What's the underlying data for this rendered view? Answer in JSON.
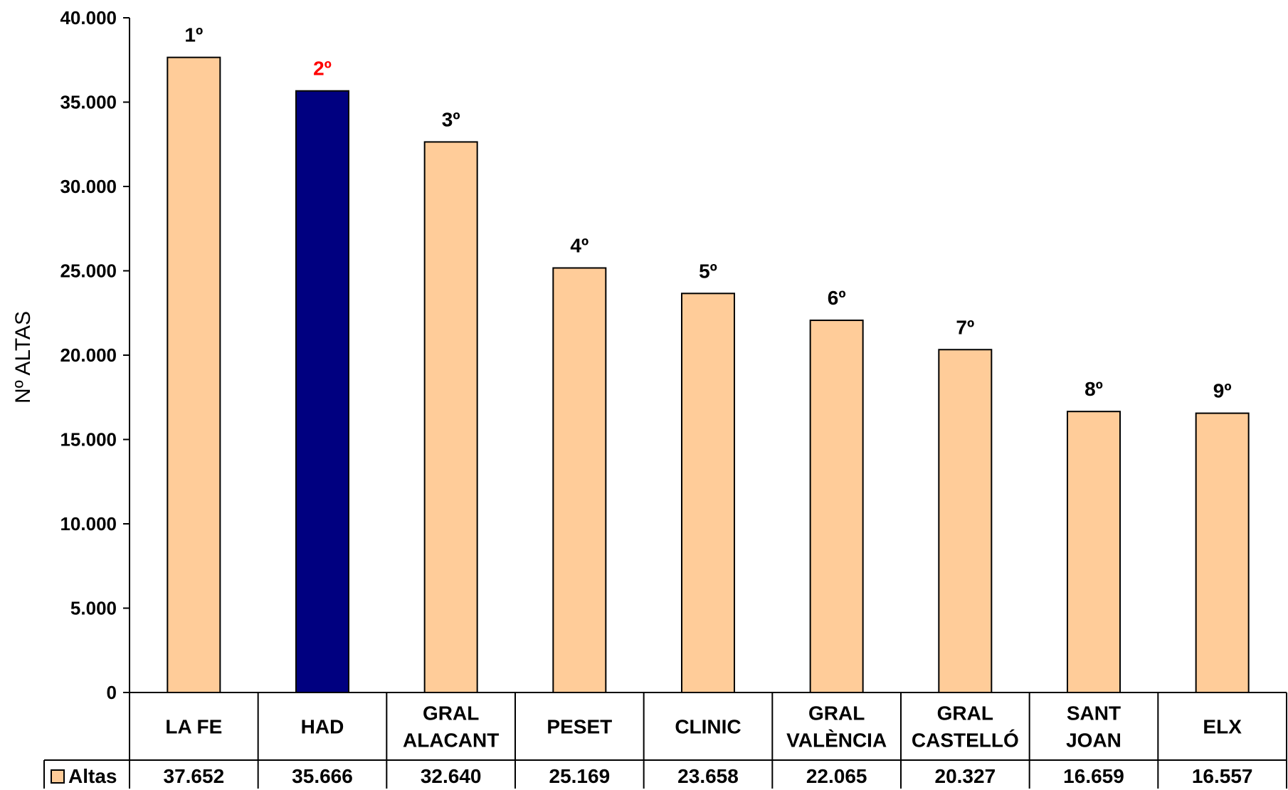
{
  "chart_data": {
    "type": "bar",
    "ylabel": "Nº ALTAS",
    "ylim": [
      0,
      40000
    ],
    "yticks": [
      0,
      5000,
      10000,
      15000,
      20000,
      25000,
      30000,
      35000,
      40000
    ],
    "ytick_labels": [
      "0",
      "5.000",
      "10.000",
      "15.000",
      "20.000",
      "25.000",
      "30.000",
      "35.000",
      "40.000"
    ],
    "categories": [
      [
        "LA FE"
      ],
      [
        "HAD"
      ],
      [
        "GRAL",
        "ALACANT"
      ],
      [
        "PESET"
      ],
      [
        "CLINIC"
      ],
      [
        "GRAL",
        "VALÈNCIA"
      ],
      [
        "GRAL",
        "CASTELLÓ"
      ],
      [
        "SANT",
        "JOAN"
      ],
      [
        "ELX"
      ]
    ],
    "series": [
      {
        "name": "Altas",
        "values": [
          37652,
          35666,
          32640,
          25169,
          23658,
          22065,
          20327,
          16659,
          16557
        ],
        "value_labels": [
          "37.652",
          "35.666",
          "32.640",
          "25.169",
          "23.658",
          "22.065",
          "20.327",
          "16.659",
          "16.557"
        ]
      }
    ],
    "rank_labels": [
      "1º",
      "2º",
      "3º",
      "4º",
      "5º",
      "6º",
      "7º",
      "8º",
      "9º"
    ],
    "highlight_index": 1,
    "colors": {
      "bar": "#FFCC99",
      "highlight_bar": "#000080",
      "highlight_rank": "#FF0000",
      "rank": "#000000",
      "outline": "#000000"
    },
    "data_table": true,
    "grid": false
  }
}
